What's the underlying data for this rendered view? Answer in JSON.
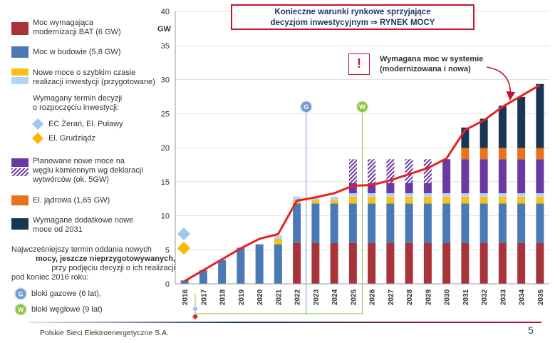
{
  "title_box": {
    "line1": "Konieczne warunki rynkowe sprzyjające",
    "line2": "decyzjom inwestycyjnym ⇒ RYNEK MOCY"
  },
  "warning": {
    "symbol": "!",
    "line1": "Wymagana moc w systemie",
    "line2": "(modernizowana i nowa)"
  },
  "legend": {
    "bat": [
      "Moc wymagająca",
      "modernizacji BAT (6 GW)"
    ],
    "building": [
      "Moc w  budowie (5,8 GW)"
    ],
    "quick": [
      "Nowe moce o szybkim czasie",
      "realizacji inwestycji (przygotowane)"
    ],
    "decision_heading": [
      "Wymagany termin decyzji",
      "o rozpoczęciu inwestycji:"
    ],
    "ec_zeran": "EC Żerań, El. Puławy",
    "el_grudziadz": "El. Grudziądz",
    "coal": [
      "Planowane nowe moce na",
      "węglu kamiennym wg deklaracji",
      "wytwórców (ok. 5GW)"
    ],
    "nuclear": [
      "El. jądrowa (1,65 GW)"
    ],
    "required_new": [
      "Wymagane dodatkowe nowe",
      "moce od 2031"
    ],
    "earliest_note": [
      "Najwcześniejszy termin oddania nowych",
      "mocy, jeszcze nieprzygotowywanych,",
      "przy podjęciu decyzji o ich realizacji",
      "pod koniec 2016 roku:"
    ],
    "gas_badge": "G",
    "gas_label": "bloki gazowe (6 lat),",
    "coal_badge": "W",
    "coal_label": "bloki węglowe (9 lat)"
  },
  "footer": {
    "company": "Polskie Sieci Elektroenergetyczne S.A.",
    "page": "5"
  },
  "colors": {
    "bat": "#a6343a",
    "building": "#4a7ab5",
    "quick_yellow": "#f9c116",
    "quick_blue": "#b2d4f5",
    "coal": "#6b3aa0",
    "nuclear": "#e8731b",
    "required_new": "#1b3557",
    "line": "#e8211f",
    "diamond_blue": "#9fc5f0",
    "diamond_yellow": "#f9b700",
    "gas": "#6f9bd1",
    "coalW": "#8cc63f"
  },
  "chart_data": {
    "type": "bar",
    "ylabel": "GW",
    "ylim": [
      0,
      40
    ],
    "yticks": [
      0,
      5,
      10,
      15,
      20,
      25,
      30,
      35,
      40
    ],
    "categories": [
      "2016",
      "2017",
      "2018",
      "2019",
      "2020",
      "2021",
      "2022",
      "2023",
      "2024",
      "2025",
      "2026",
      "2027",
      "2028",
      "2029",
      "2030",
      "2031",
      "2032",
      "2033",
      "2034",
      "2035"
    ],
    "series": [
      {
        "name": "Moc wymagająca modernizacji BAT (6 GW)",
        "color": "bat",
        "values": [
          0,
          0,
          0,
          0,
          0,
          0,
          6,
          6,
          6,
          6,
          6,
          6,
          6,
          6,
          6,
          6,
          6,
          6,
          6,
          6
        ]
      },
      {
        "name": "Moc w  budowie (5,8 GW)",
        "color": "building",
        "values": [
          0.5,
          2,
          3.5,
          5.3,
          5.8,
          5.8,
          5.8,
          5.8,
          5.8,
          5.8,
          5.8,
          5.8,
          5.8,
          5.8,
          5.8,
          5.8,
          5.8,
          5.8,
          5.8,
          5.8
        ]
      },
      {
        "name": "Nowe moce o szybkim czasie realizacji inwestycji (przygotowane) - yellow",
        "color": "quick_yellow",
        "values": [
          0,
          0,
          0,
          0,
          0,
          0.8,
          0.5,
          0.5,
          0.5,
          1,
          1,
          1,
          1,
          1,
          1,
          1,
          1,
          1,
          1,
          1
        ]
      },
      {
        "name": "Nowe moce o szybkim czasie realizacji inwestycji (przygotowane) - blue",
        "color": "quick_blue",
        "values": [
          0,
          0,
          0,
          0,
          0,
          0.5,
          0.5,
          0.5,
          0.5,
          0.5,
          0.5,
          0.5,
          0.5,
          0.5,
          0.5,
          0.5,
          0.5,
          0.5,
          0.5,
          0.5
        ]
      },
      {
        "name": "Planowane nowe moce na węglu kamiennym (planned)",
        "color": "coal",
        "values": [
          0,
          0,
          0,
          0,
          0,
          0,
          0,
          0,
          0,
          1.5,
          1.5,
          1.5,
          1.5,
          1.5,
          5,
          5,
          5,
          5,
          5,
          5
        ]
      },
      {
        "name": "Planowane nowe moce na węglu kamiennym (declared, hatched)",
        "color": "coal",
        "hatched": true,
        "values": [
          0,
          0,
          0,
          0,
          0,
          0,
          0,
          0,
          0,
          3.5,
          3.5,
          3.5,
          3.5,
          3.5,
          0,
          0,
          0,
          0,
          0,
          0
        ]
      },
      {
        "name": "El. jądrowa (1,65 GW)",
        "color": "nuclear",
        "values": [
          0,
          0,
          0,
          0,
          0,
          0,
          0,
          0,
          0,
          0,
          0,
          0,
          0,
          0,
          0,
          1.65,
          1.65,
          1.65,
          1.65,
          1.65
        ]
      },
      {
        "name": "Wymagane dodatkowe nowe moce od 2031",
        "color": "required_new",
        "values": [
          0,
          0,
          0,
          0,
          0,
          0,
          0,
          0,
          0,
          0,
          0,
          0,
          0,
          0,
          0,
          3,
          4.3,
          6.2,
          7.5,
          9.4
        ]
      }
    ],
    "line": {
      "name": "Wymagana moc w systemie (modernizowana i nowa)",
      "values": [
        0.4,
        2,
        3.6,
        5.2,
        6.6,
        7.3,
        12.2,
        12.7,
        13.3,
        14.4,
        14.5,
        15.2,
        16.1,
        17,
        18.4,
        22.6,
        24,
        26,
        27.6,
        29.2
      ]
    },
    "markers": [
      {
        "label": "G",
        "year": "2023",
        "value": 26
      },
      {
        "label": "W",
        "year": "2026",
        "value": 26
      }
    ]
  }
}
